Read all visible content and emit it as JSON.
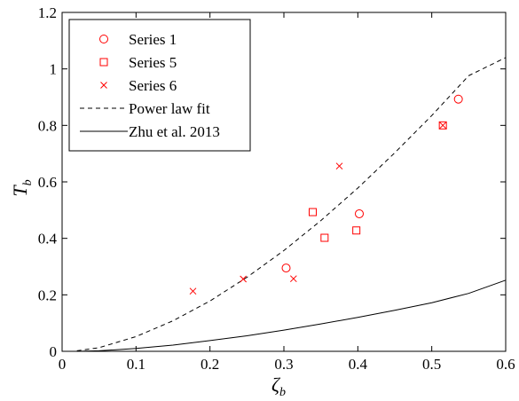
{
  "chart_data": {
    "type": "scatter",
    "xlabel": "ζ",
    "xlabel_sub": "b",
    "ylabel": "T",
    "ylabel_sub": "b",
    "xlim": [
      0,
      0.6
    ],
    "ylim": [
      0,
      1.2
    ],
    "x_ticks": [
      "0",
      "0.1",
      "0.2",
      "0.3",
      "0.4",
      "0.5",
      "0.6"
    ],
    "y_ticks": [
      "0",
      "0.2",
      "0.4",
      "0.6",
      "0.8",
      "1",
      "1.2"
    ],
    "x_tick_values": [
      0,
      0.1,
      0.2,
      0.3,
      0.4,
      0.5,
      0.6
    ],
    "y_tick_values": [
      0,
      0.2,
      0.4,
      0.6,
      0.8,
      1.0,
      1.2
    ],
    "grid": false,
    "legend_position": "top-left",
    "color": "#ff0000",
    "series": [
      {
        "name": "Series 1",
        "marker": "circle",
        "x": [
          0.303,
          0.402,
          0.536
        ],
        "y": [
          0.295,
          0.487,
          0.893
        ]
      },
      {
        "name": "Series 5",
        "marker": "square",
        "x": [
          0.339,
          0.355,
          0.398,
          0.515
        ],
        "y": [
          0.493,
          0.402,
          0.428,
          0.8
        ]
      },
      {
        "name": "Series 6",
        "marker": "x",
        "x": [
          0.177,
          0.245,
          0.313,
          0.375,
          0.515
        ],
        "y": [
          0.213,
          0.256,
          0.257,
          0.656,
          0.8
        ]
      }
    ],
    "lines": [
      {
        "name": "Power law fit",
        "style": "dashed",
        "x": [
          0.02,
          0.05,
          0.1,
          0.15,
          0.2,
          0.25,
          0.3,
          0.35,
          0.4,
          0.45,
          0.5,
          0.55,
          0.6
        ],
        "y": [
          0.002,
          0.013,
          0.052,
          0.108,
          0.178,
          0.262,
          0.357,
          0.463,
          0.578,
          0.703,
          0.835,
          0.976,
          1.04
        ]
      },
      {
        "name": "Zhu et al. 2013",
        "style": "solid",
        "x": [
          0.02,
          0.05,
          0.1,
          0.15,
          0.2,
          0.25,
          0.3,
          0.35,
          0.4,
          0.45,
          0.5,
          0.55,
          0.6
        ],
        "y": [
          0.0,
          0.002,
          0.01,
          0.022,
          0.038,
          0.055,
          0.075,
          0.097,
          0.12,
          0.145,
          0.172,
          0.205,
          0.252
        ]
      }
    ]
  }
}
